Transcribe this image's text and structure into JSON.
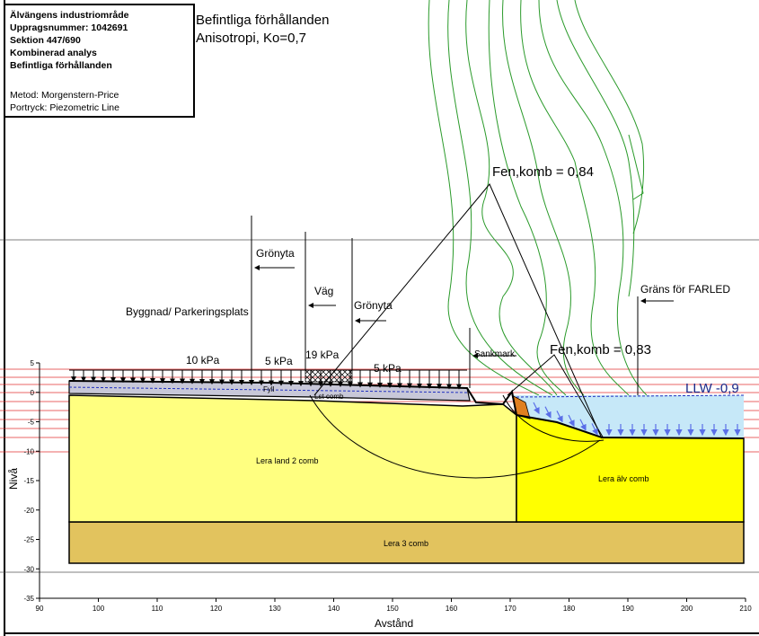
{
  "info_box": {
    "bold_lines": [
      "Älvängens industriområde",
      "Uppragsnummer: 1042691",
      "Sektion 447/690",
      "Kombinerad analys",
      "Befintliga förhållanden"
    ],
    "lines": [
      "Metod: Morgenstern-Price",
      "Portryck: Piezometric Line"
    ]
  },
  "title": [
    "Befintliga förhållanden",
    "Anisotropi, Ko=0,7"
  ],
  "labels": {
    "gronyta_1": "Grönyta",
    "vag": "Väg",
    "gronyta_2": "Grönyta",
    "byggnad": "Byggnad/ Parkeringsplats",
    "farled": "Gräns för FARLED",
    "load_10": "10 kPa",
    "load_5a": "5 kPa",
    "load_19": "19 kPa",
    "load_5b": "5 kPa",
    "sankmark": "Sankmark",
    "fs_1": "Fen,komb = 0,84",
    "fs_2": "Fen,komb = 0,83",
    "llw": "LLW -0,9",
    "fyll": "Fyll",
    "lst": "Lst comb",
    "lera_land": "Lera land 2 comb",
    "lera_alv": "Lera älv comb",
    "lera_3": "Lera 3 comb"
  },
  "axes": {
    "x_label": "Avstånd",
    "y_label": "Nivå",
    "xlim": [
      90,
      210
    ],
    "ylim": [
      -35,
      5
    ],
    "xticks": [
      90,
      100,
      110,
      120,
      130,
      140,
      150,
      160,
      170,
      180,
      190,
      200,
      210
    ],
    "yticks": [
      5,
      0,
      -5,
      -10,
      -15,
      -20,
      -25,
      -30,
      -35
    ]
  }
}
